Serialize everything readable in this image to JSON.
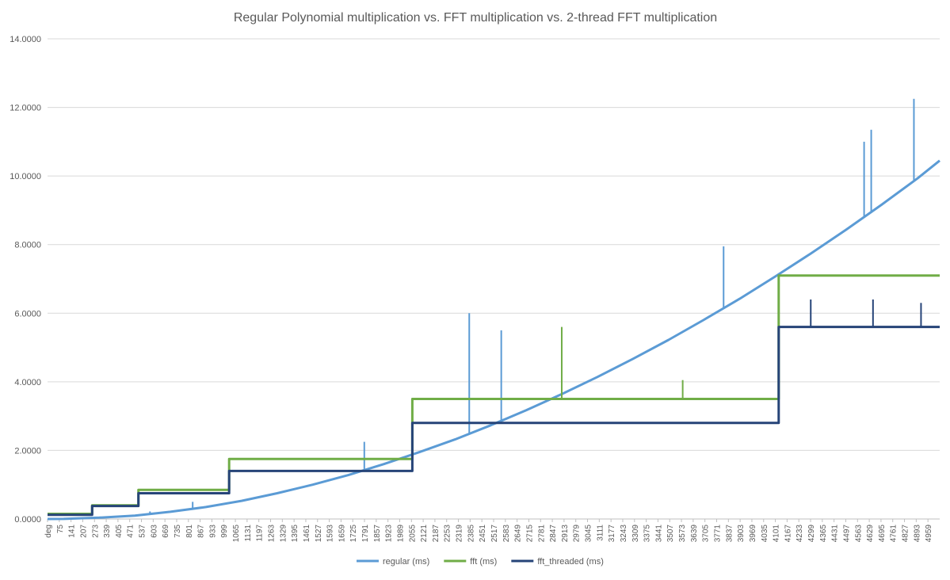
{
  "chart_data": {
    "type": "line",
    "title": "Regular Polynomial multiplication vs. FFT multiplication vs. 2-thread FFT multiplication",
    "xlabel": "",
    "ylabel": "",
    "ylim": [
      0,
      14
    ],
    "y_ticks": [
      "0.0000",
      "2.0000",
      "4.0000",
      "6.0000",
      "8.0000",
      "10.0000",
      "12.0000",
      "14.0000"
    ],
    "x_first_label": "deg",
    "x_ticks": [
      75,
      141,
      207,
      273,
      339,
      405,
      471,
      537,
      603,
      669,
      735,
      801,
      867,
      933,
      999,
      1065,
      1131,
      1197,
      1263,
      1329,
      1395,
      1461,
      1527,
      1593,
      1659,
      1725,
      1791,
      1857,
      1923,
      1989,
      2055,
      2121,
      2187,
      2253,
      2319,
      2385,
      2451,
      2517,
      2583,
      2649,
      2715,
      2781,
      2847,
      2913,
      2979,
      3045,
      3111,
      3177,
      3243,
      3309,
      3375,
      3441,
      3507,
      3573,
      3639,
      3705,
      3771,
      3837,
      3903,
      3969,
      4035,
      4101,
      4167,
      4233,
      4299,
      4365,
      4431,
      4497,
      4563,
      4629,
      4695,
      4761,
      4827,
      4893,
      4959
    ],
    "xlim": [
      9,
      5025
    ],
    "grid": true,
    "legend_position": "bottom",
    "series": [
      {
        "name": "regular (ms)",
        "color": "#5b9bd5",
        "points": [
          [
            9,
            0.0
          ],
          [
            100,
            0.003
          ],
          [
            300,
            0.04
          ],
          [
            500,
            0.1
          ],
          [
            700,
            0.21
          ],
          [
            900,
            0.35
          ],
          [
            1100,
            0.53
          ],
          [
            1300,
            0.75
          ],
          [
            1500,
            1.0
          ],
          [
            1700,
            1.28
          ],
          [
            1900,
            1.6
          ],
          [
            2100,
            1.95
          ],
          [
            2300,
            2.32
          ],
          [
            2500,
            2.73
          ],
          [
            2700,
            3.17
          ],
          [
            2900,
            3.64
          ],
          [
            3100,
            4.14
          ],
          [
            3300,
            4.67
          ],
          [
            3500,
            5.22
          ],
          [
            3700,
            5.81
          ],
          [
            3900,
            6.42
          ],
          [
            4100,
            7.07
          ],
          [
            4300,
            7.74
          ],
          [
            4500,
            8.44
          ],
          [
            4700,
            9.17
          ],
          [
            4900,
            9.93
          ],
          [
            5025,
            10.45
          ]
        ],
        "spikes": [
          [
            585,
            0.22
          ],
          [
            825,
            0.5
          ],
          [
            1790,
            2.25
          ],
          [
            2380,
            6.0
          ],
          [
            2560,
            5.5
          ],
          [
            3810,
            7.95
          ],
          [
            4600,
            11.0
          ],
          [
            4640,
            11.35
          ],
          [
            4880,
            12.25
          ]
        ]
      },
      {
        "name": "fft (ms)",
        "color": "#70ad47",
        "points": [
          [
            9,
            0.15
          ],
          [
            260,
            0.15
          ],
          [
            260,
            0.4
          ],
          [
            520,
            0.4
          ],
          [
            520,
            0.85
          ],
          [
            1030,
            0.85
          ],
          [
            1030,
            1.75
          ],
          [
            2060,
            1.75
          ],
          [
            2060,
            3.5
          ],
          [
            4120,
            3.5
          ],
          [
            4120,
            7.1
          ],
          [
            5025,
            7.1
          ]
        ],
        "spikes": [
          [
            2900,
            5.6
          ],
          [
            3580,
            4.05
          ]
        ]
      },
      {
        "name": "fft_threaded (ms)",
        "color": "#264478",
        "points": [
          [
            9,
            0.12
          ],
          [
            260,
            0.12
          ],
          [
            260,
            0.38
          ],
          [
            520,
            0.38
          ],
          [
            520,
            0.75
          ],
          [
            1030,
            0.75
          ],
          [
            1030,
            1.4
          ],
          [
            2060,
            1.4
          ],
          [
            2060,
            2.8
          ],
          [
            4120,
            2.8
          ],
          [
            4120,
            5.6
          ],
          [
            5025,
            5.6
          ]
        ],
        "spikes": [
          [
            4300,
            6.4
          ],
          [
            4650,
            6.4
          ],
          [
            4920,
            6.3
          ]
        ]
      }
    ]
  }
}
